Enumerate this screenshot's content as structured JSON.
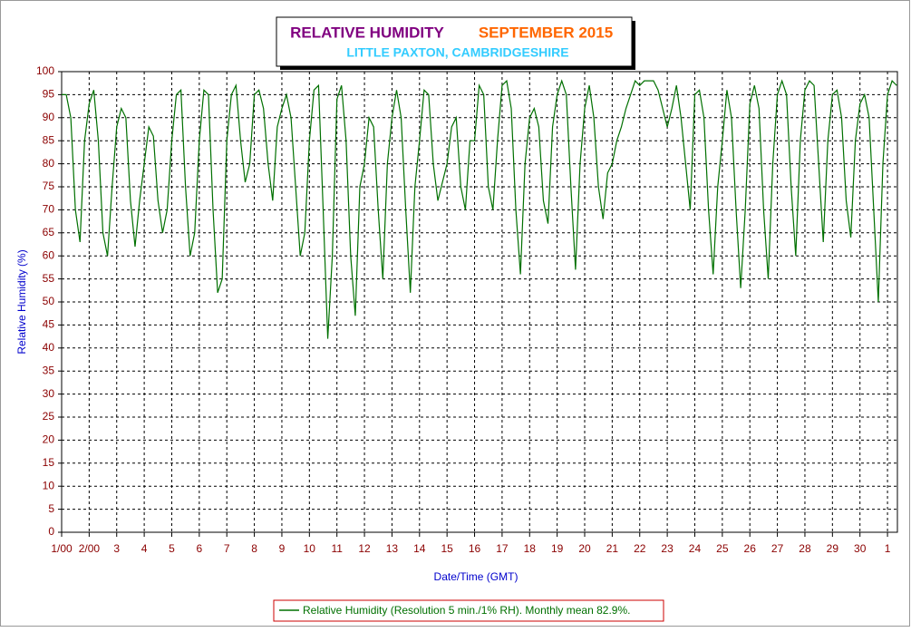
{
  "chart_data": {
    "type": "line",
    "title": "RELATIVE HUMIDITY",
    "period": "SEPTEMBER 2015",
    "subtitle": "LITTLE PAXTON, CAMBRIDGESHIRE",
    "x_label": "Date/Time (GMT)",
    "y_label": "Relative Humidity (%)",
    "xlim": [
      1,
      31.36
    ],
    "ylim": [
      0,
      100
    ],
    "xticks": [
      {
        "value": 1,
        "label": "1/00"
      },
      {
        "value": 2,
        "label": "2/00"
      },
      3,
      4,
      5,
      6,
      7,
      8,
      9,
      10,
      11,
      12,
      13,
      14,
      15,
      16,
      17,
      18,
      19,
      20,
      21,
      22,
      23,
      24,
      25,
      26,
      27,
      28,
      29,
      30,
      {
        "value": 31,
        "label": "1"
      }
    ],
    "yticks": [
      0,
      5,
      10,
      15,
      20,
      25,
      30,
      35,
      40,
      45,
      50,
      55,
      60,
      65,
      70,
      75,
      80,
      85,
      90,
      95,
      100
    ],
    "grid": true,
    "x": [
      1,
      1.167,
      1.333,
      1.5,
      1.667,
      1.833,
      2,
      2.167,
      2.333,
      2.5,
      2.667,
      2.833,
      3,
      3.167,
      3.333,
      3.5,
      3.667,
      3.833,
      4,
      4.167,
      4.333,
      4.5,
      4.667,
      4.833,
      5,
      5.167,
      5.333,
      5.5,
      5.667,
      5.833,
      6,
      6.167,
      6.333,
      6.5,
      6.667,
      6.833,
      7,
      7.167,
      7.333,
      7.5,
      7.667,
      7.833,
      8,
      8.167,
      8.333,
      8.5,
      8.667,
      8.833,
      9,
      9.167,
      9.333,
      9.5,
      9.667,
      9.833,
      10,
      10.167,
      10.333,
      10.5,
      10.667,
      10.833,
      11,
      11.167,
      11.333,
      11.5,
      11.667,
      11.833,
      12,
      12.167,
      12.333,
      12.5,
      12.667,
      12.833,
      13,
      13.167,
      13.333,
      13.5,
      13.667,
      13.833,
      14,
      14.167,
      14.333,
      14.5,
      14.667,
      14.833,
      15,
      15.167,
      15.333,
      15.5,
      15.667,
      15.833,
      16,
      16.167,
      16.333,
      16.5,
      16.667,
      16.833,
      17,
      17.167,
      17.333,
      17.5,
      17.667,
      17.833,
      18,
      18.167,
      18.333,
      18.5,
      18.667,
      18.833,
      19,
      19.167,
      19.333,
      19.5,
      19.667,
      19.833,
      20,
      20.167,
      20.333,
      20.5,
      20.667,
      20.833,
      21,
      21.167,
      21.333,
      21.5,
      21.667,
      21.833,
      22,
      22.167,
      22.333,
      22.5,
      22.667,
      22.833,
      23,
      23.167,
      23.333,
      23.5,
      23.667,
      23.833,
      24,
      24.167,
      24.333,
      24.5,
      24.667,
      24.833,
      25,
      25.167,
      25.333,
      25.5,
      25.667,
      25.833,
      26,
      26.167,
      26.333,
      26.5,
      26.667,
      26.833,
      27,
      27.167,
      27.333,
      27.5,
      27.667,
      27.833,
      28,
      28.167,
      28.333,
      28.5,
      28.667,
      28.833,
      29,
      29.167,
      29.333,
      29.5,
      29.667,
      29.833,
      30,
      30.167,
      30.333,
      30.5,
      30.667,
      30.833,
      31,
      31.167,
      31.333
    ],
    "series": [
      {
        "name": "Relative Humidity (Resolution 5 min./1% RH). Monthly mean 82.9%.",
        "color": "#007000",
        "values": [
          95,
          95,
          90,
          70,
          63,
          85,
          93,
          96,
          85,
          65,
          60,
          75,
          88,
          92,
          90,
          72,
          62,
          72,
          80,
          88,
          86,
          72,
          65,
          70,
          85,
          95,
          96,
          75,
          60,
          65,
          85,
          96,
          95,
          70,
          52,
          55,
          85,
          95,
          97,
          85,
          76,
          80,
          95,
          96,
          92,
          80,
          72,
          88,
          92,
          95,
          90,
          75,
          60,
          65,
          85,
          96,
          97,
          70,
          42,
          60,
          94,
          97,
          85,
          60,
          47,
          75,
          80,
          90,
          88,
          70,
          55,
          80,
          90,
          96,
          90,
          70,
          52,
          75,
          85,
          96,
          95,
          80,
          72,
          76,
          80,
          88,
          90,
          75,
          70,
          85,
          85,
          97,
          95,
          75,
          70,
          85,
          97,
          98,
          92,
          70,
          56,
          80,
          90,
          92,
          88,
          72,
          67,
          88,
          95,
          98,
          95,
          75,
          57,
          80,
          92,
          97,
          90,
          75,
          68,
          78,
          80,
          85,
          88,
          92,
          95,
          98,
          97,
          98,
          98,
          98,
          96,
          92,
          88,
          92,
          97,
          90,
          80,
          70,
          95,
          96,
          90,
          70,
          56,
          75,
          85,
          96,
          90,
          70,
          53,
          70,
          93,
          97,
          92,
          70,
          55,
          80,
          95,
          98,
          95,
          75,
          60,
          85,
          96,
          98,
          97,
          80,
          63,
          85,
          95,
          96,
          90,
          72,
          64,
          85,
          93,
          95,
          90,
          70,
          50,
          80,
          95,
          98,
          97
        ]
      }
    ]
  }
}
